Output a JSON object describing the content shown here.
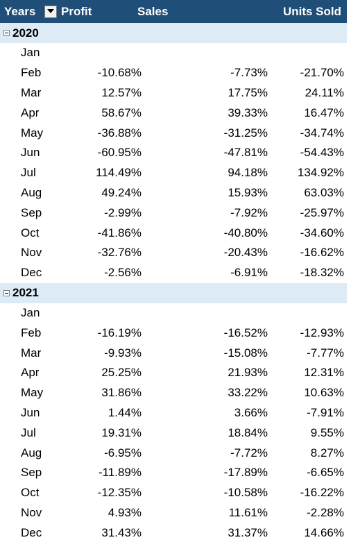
{
  "header": {
    "years_label": "Years",
    "profit_label": "Profit",
    "sales_label": "Sales",
    "units_label": "Units Sold"
  },
  "groups": [
    {
      "year": "2020",
      "rows": [
        {
          "month": "Jan",
          "profit": "",
          "sales": "",
          "units": ""
        },
        {
          "month": "Feb",
          "profit": "-10.68%",
          "sales": "-7.73%",
          "units": "-21.70%"
        },
        {
          "month": "Mar",
          "profit": "12.57%",
          "sales": "17.75%",
          "units": "24.11%"
        },
        {
          "month": "Apr",
          "profit": "58.67%",
          "sales": "39.33%",
          "units": "16.47%"
        },
        {
          "month": "May",
          "profit": "-36.88%",
          "sales": "-31.25%",
          "units": "-34.74%"
        },
        {
          "month": "Jun",
          "profit": "-60.95%",
          "sales": "-47.81%",
          "units": "-54.43%"
        },
        {
          "month": "Jul",
          "profit": "114.49%",
          "sales": "94.18%",
          "units": "134.92%"
        },
        {
          "month": "Aug",
          "profit": "49.24%",
          "sales": "15.93%",
          "units": "63.03%"
        },
        {
          "month": "Sep",
          "profit": "-2.99%",
          "sales": "-7.92%",
          "units": "-25.97%"
        },
        {
          "month": "Oct",
          "profit": "-41.86%",
          "sales": "-40.80%",
          "units": "-34.60%"
        },
        {
          "month": "Nov",
          "profit": "-32.76%",
          "sales": "-20.43%",
          "units": "-16.62%"
        },
        {
          "month": "Dec",
          "profit": "-2.56%",
          "sales": "-6.91%",
          "units": "-18.32%"
        }
      ]
    },
    {
      "year": "2021",
      "rows": [
        {
          "month": "Jan",
          "profit": "",
          "sales": "",
          "units": ""
        },
        {
          "month": "Feb",
          "profit": "-16.19%",
          "sales": "-16.52%",
          "units": "-12.93%"
        },
        {
          "month": "Mar",
          "profit": "-9.93%",
          "sales": "-15.08%",
          "units": "-7.77%"
        },
        {
          "month": "Apr",
          "profit": "25.25%",
          "sales": "21.93%",
          "units": "12.31%"
        },
        {
          "month": "May",
          "profit": "31.86%",
          "sales": "33.22%",
          "units": "10.63%"
        },
        {
          "month": "Jun",
          "profit": "1.44%",
          "sales": "3.66%",
          "units": "-7.91%"
        },
        {
          "month": "Jul",
          "profit": "19.31%",
          "sales": "18.84%",
          "units": "9.55%"
        },
        {
          "month": "Aug",
          "profit": "-6.95%",
          "sales": "-7.72%",
          "units": "8.27%"
        },
        {
          "month": "Sep",
          "profit": "-11.89%",
          "sales": "-17.89%",
          "units": "-6.65%"
        },
        {
          "month": "Oct",
          "profit": "-12.35%",
          "sales": "-10.58%",
          "units": "-16.22%"
        },
        {
          "month": "Nov",
          "profit": "4.93%",
          "sales": "11.61%",
          "units": "-2.28%"
        },
        {
          "month": "Dec",
          "profit": "31.43%",
          "sales": "31.37%",
          "units": "14.66%"
        }
      ]
    }
  ],
  "colors": {
    "header_bg": "#1f4e78",
    "header_text": "#ffffff",
    "year_row_bg": "#ddebf7"
  },
  "icons": {
    "filter": "filter-dropdown-icon",
    "collapse": "collapse-minus-icon"
  }
}
